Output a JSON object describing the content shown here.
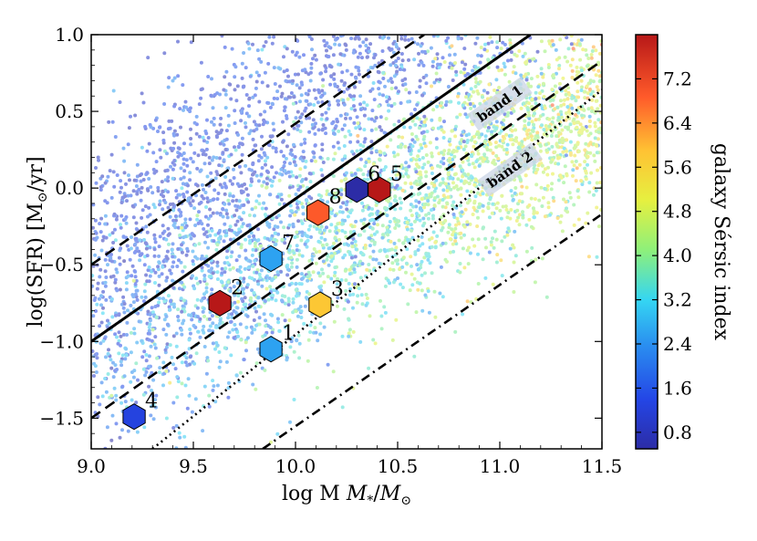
{
  "chart_data": {
    "type": "scatter",
    "title": "",
    "xlabel": "log M",
    "xlabel_sub_star": "*",
    "xlabel_sep": "/",
    "xlabel_sun": "M",
    "ylabel": "log(SFR)  [M",
    "ylabel_tail": "/yr]",
    "xlim": [
      9.0,
      11.5
    ],
    "ylim": [
      -1.7,
      1.0
    ],
    "xticks": [
      {
        "v": 9.0,
        "label": "9.0"
      },
      {
        "v": 9.5,
        "label": "9.5"
      },
      {
        "v": 10.0,
        "label": "10.0"
      },
      {
        "v": 10.5,
        "label": "10.5"
      },
      {
        "v": 11.0,
        "label": "11.0"
      },
      {
        "v": 11.5,
        "label": "11.5"
      }
    ],
    "yticks": [
      {
        "v": 1.0,
        "label": "1.0"
      },
      {
        "v": 0.5,
        "label": "0.5"
      },
      {
        "v": 0.0,
        "label": "0.0"
      },
      {
        "v": -0.5,
        "label": "−0.5"
      },
      {
        "v": -1.0,
        "label": "−1.0"
      },
      {
        "v": -1.5,
        "label": "−1.5"
      }
    ],
    "colorbar": {
      "label": "galaxy Sérsic index",
      "range": [
        0.5,
        8.0
      ],
      "ticks": [
        {
          "v": 0.8,
          "label": "0.8"
        },
        {
          "v": 1.6,
          "label": "1.6"
        },
        {
          "v": 2.4,
          "label": "2.4"
        },
        {
          "v": 3.2,
          "label": "3.2"
        },
        {
          "v": 4.0,
          "label": "4.0"
        },
        {
          "v": 4.8,
          "label": "4.8"
        },
        {
          "v": 5.6,
          "label": "5.6"
        },
        {
          "v": 6.4,
          "label": "6.4"
        },
        {
          "v": 7.2,
          "label": "7.2"
        }
      ]
    },
    "lines": [
      {
        "name": "main-sequence-line",
        "style": "solid",
        "points": [
          [
            9.0,
            -1.0
          ],
          [
            11.15,
            1.0
          ]
        ]
      },
      {
        "name": "main-sequence-upper-dashed",
        "style": "dashed",
        "points": [
          [
            9.0,
            -0.5
          ],
          [
            10.63,
            1.0
          ]
        ]
      },
      {
        "name": "main-sequence-lower-dashed",
        "style": "dashed",
        "points": [
          [
            9.0,
            -1.5
          ],
          [
            11.5,
            0.83
          ]
        ]
      },
      {
        "name": "dotted-boundary-line",
        "style": "dotted",
        "points": [
          [
            9.3,
            -1.7
          ],
          [
            11.5,
            0.64
          ]
        ]
      },
      {
        "name": "dash-dot-boundary-line",
        "style": "dashdot",
        "points": [
          [
            9.84,
            -1.7
          ],
          [
            11.5,
            -0.17
          ]
        ]
      }
    ],
    "band_labels": [
      {
        "text": "band 1",
        "x": 11.0,
        "y": 0.55
      },
      {
        "text": "band 2",
        "x": 11.05,
        "y": 0.12
      }
    ],
    "series": [
      {
        "name": "numbered galaxies",
        "points": [
          {
            "label": "1",
            "x": 9.88,
            "y": -1.05,
            "sersic": 2.6
          },
          {
            "label": "2",
            "x": 9.63,
            "y": -0.75,
            "sersic": 8.0
          },
          {
            "label": "3",
            "x": 10.12,
            "y": -0.76,
            "sersic": 5.8
          },
          {
            "label": "4",
            "x": 9.21,
            "y": -1.49,
            "sersic": 1.3
          },
          {
            "label": "5",
            "x": 10.41,
            "y": -0.01,
            "sersic": 8.0
          },
          {
            "label": "6",
            "x": 10.3,
            "y": -0.01,
            "sersic": 0.5
          },
          {
            "label": "7",
            "x": 9.88,
            "y": -0.46,
            "sersic": 2.6
          },
          {
            "label": "8",
            "x": 10.11,
            "y": -0.16,
            "sersic": 6.9
          }
        ]
      }
    ],
    "background_population": {
      "description_for_rendering": "dense scatter of galaxies colored by Sérsic index",
      "count": 5200
    }
  }
}
